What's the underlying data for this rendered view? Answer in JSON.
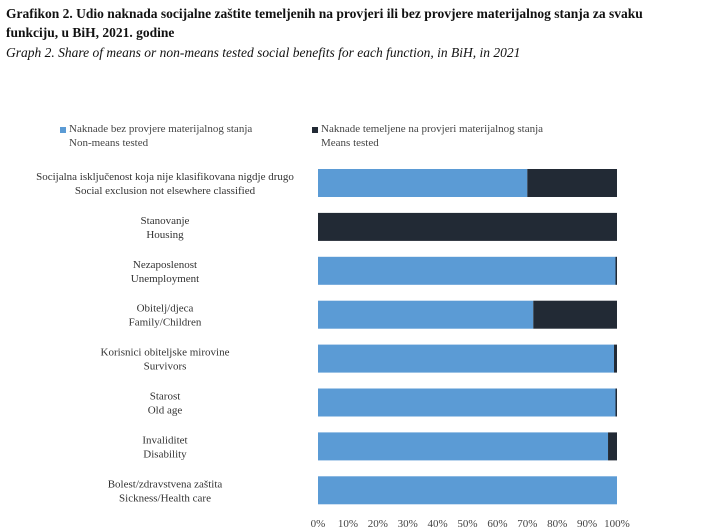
{
  "title_bs": "Grafikon 2. Udio naknada socijalne zaštite temeljenih na provjeri ili bez provjere materijalnog stanja za svaku funkciju, u BiH, 2021. godine",
  "title_en": "Graph 2. Share of means or non-means tested social benefits for each function, in BiH, in 2021",
  "colors": {
    "non_means": "#5b9bd5",
    "means": "#222a35"
  },
  "legend": [
    {
      "line1": "Naknade bez provjere materijalnog stanja",
      "line2": "Non-means tested",
      "color": "#5b9bd5"
    },
    {
      "line1": "Naknade temeljene na provjeri materijalnog stanja",
      "line2": "Means tested",
      "color": "#222a35"
    }
  ],
  "chart_data": {
    "type": "bar",
    "orientation": "horizontal",
    "stacked": true,
    "categories": [
      {
        "bs": "Socijalna isključenost koja nije klasifikovana nigdje drugo",
        "en": "Social exclusion not elsewhere classified"
      },
      {
        "bs": "Stanovanje",
        "en": "Housing"
      },
      {
        "bs": "Nezaposlenost",
        "en": "Unemployment"
      },
      {
        "bs": "Obitelj/djeca",
        "en": "Family/Children"
      },
      {
        "bs": "Korisnici obiteljske mirovine",
        "en": "Survivors"
      },
      {
        "bs": "Starost",
        "en": "Old age"
      },
      {
        "bs": "Invaliditet",
        "en": "Disability"
      },
      {
        "bs": "Bolest/zdravstvena zaštita",
        "en": "Sickness/Health care"
      }
    ],
    "series": [
      {
        "name": "Naknade bez provjere materijalnog stanja / Non-means tested",
        "values": [
          70,
          0,
          99.5,
          72,
          99,
          99.5,
          97,
          100
        ]
      },
      {
        "name": "Naknade temeljene na provjeri materijalnog stanja / Means tested",
        "values": [
          30,
          100,
          0.5,
          28,
          1,
          0.5,
          3,
          0
        ]
      }
    ],
    "x_ticks": [
      "0%",
      "10%",
      "20%",
      "30%",
      "40%",
      "50%",
      "60%",
      "70%",
      "80%",
      "90%",
      "100%"
    ],
    "xlim": [
      0,
      100
    ]
  }
}
